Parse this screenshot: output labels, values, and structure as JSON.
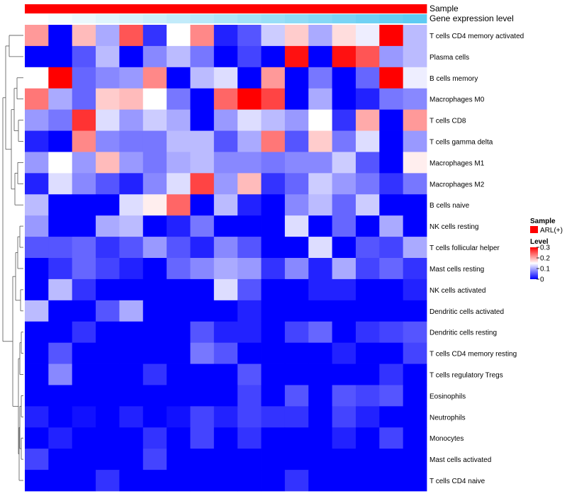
{
  "chart_data": {
    "type": "heatmap",
    "annotation_labels": {
      "sample": "Sample",
      "expression": "Gene expression level"
    },
    "rows": [
      "T cells CD4 memory activated",
      "Plasma cells",
      "B cells memory",
      "Macrophages M0",
      "T cells CD8",
      "T cells gamma delta",
      "Macrophages M1",
      "Macrophages M2",
      "B cells naive",
      "NK cells resting",
      "T cells follicular helper",
      "Mast cells resting",
      "NK cells activated",
      "Dendritic cells activated",
      "Dendritic cells resting",
      "T cells CD4 memory resting",
      "T cells regulatory  Tregs",
      "Eosinophils",
      "Neutrophils",
      "Monocytes",
      "Mast cells activated",
      "T cells CD4 naive"
    ],
    "n_columns": 17,
    "values": [
      [
        0.21,
        0.0,
        0.19,
        0.1,
        0.25,
        0.03,
        0.15,
        0.22,
        0.02,
        0.05,
        0.12,
        0.18,
        0.1,
        0.17,
        0.14,
        0.3,
        0.11
      ],
      [
        0.0,
        0.0,
        0.05,
        0.11,
        0.0,
        0.08,
        0.11,
        0.07,
        0.0,
        0.04,
        0.0,
        0.29,
        0.0,
        0.29,
        0.25,
        0.09,
        0.11
      ],
      [
        0.15,
        0.3,
        0.06,
        0.08,
        0.09,
        0.22,
        0.0,
        0.11,
        0.13,
        0.0,
        0.21,
        0.0,
        0.07,
        0.0,
        0.06,
        0.3,
        0.14
      ],
      [
        0.23,
        0.1,
        0.06,
        0.18,
        0.19,
        0.15,
        0.07,
        0.0,
        0.24,
        0.3,
        0.26,
        0.0,
        0.1,
        0.0,
        0.02,
        0.07,
        0.08
      ],
      [
        0.09,
        0.07,
        0.27,
        0.13,
        0.09,
        0.12,
        0.1,
        0.0,
        0.09,
        0.13,
        0.11,
        0.09,
        0.15,
        0.03,
        0.2,
        0.0,
        0.21
      ],
      [
        0.02,
        0.0,
        0.22,
        0.08,
        0.07,
        0.07,
        0.11,
        0.11,
        0.05,
        0.1,
        0.23,
        0.05,
        0.18,
        0.07,
        0.13,
        0.0,
        0.09
      ],
      [
        0.09,
        0.15,
        0.09,
        0.19,
        0.09,
        0.07,
        0.1,
        0.11,
        0.08,
        0.08,
        0.07,
        0.08,
        0.08,
        0.12,
        0.05,
        0.0,
        0.16
      ],
      [
        0.02,
        0.13,
        0.08,
        0.05,
        0.02,
        0.08,
        0.13,
        0.26,
        0.09,
        0.19,
        0.03,
        0.06,
        0.12,
        0.09,
        0.07,
        0.03,
        0.07
      ],
      [
        0.11,
        0.0,
        0.0,
        0.0,
        0.13,
        0.16,
        0.24,
        0.0,
        0.11,
        0.02,
        0.0,
        0.08,
        0.11,
        0.06,
        0.12,
        0.0,
        0.0
      ],
      [
        0.09,
        0.0,
        0.0,
        0.1,
        0.11,
        0.0,
        0.02,
        0.07,
        0.0,
        0.0,
        0.0,
        0.13,
        0.0,
        0.06,
        0.0,
        0.1,
        0.0
      ],
      [
        0.05,
        0.05,
        0.06,
        0.03,
        0.05,
        0.09,
        0.05,
        0.02,
        0.08,
        0.05,
        0.0,
        0.0,
        0.13,
        0.0,
        0.05,
        0.04,
        0.1
      ],
      [
        0.0,
        0.03,
        0.06,
        0.04,
        0.02,
        0.0,
        0.06,
        0.08,
        0.1,
        0.09,
        0.03,
        0.08,
        0.02,
        0.1,
        0.04,
        0.06,
        0.03
      ],
      [
        0.0,
        0.11,
        0.03,
        0.0,
        0.0,
        0.0,
        0.0,
        0.0,
        0.13,
        0.05,
        0.0,
        0.0,
        0.02,
        0.02,
        0.0,
        0.0,
        0.02
      ],
      [
        0.11,
        0.0,
        0.0,
        0.05,
        0.1,
        0.0,
        0.0,
        0.0,
        0.0,
        0.02,
        0.0,
        0.0,
        0.0,
        0.0,
        0.0,
        0.0,
        0.0
      ],
      [
        0.0,
        0.0,
        0.03,
        0.0,
        0.0,
        0.0,
        0.0,
        0.05,
        0.02,
        0.02,
        0.0,
        0.04,
        0.06,
        0.0,
        0.03,
        0.04,
        0.05
      ],
      [
        0.0,
        0.05,
        0.0,
        0.0,
        0.0,
        0.0,
        0.0,
        0.07,
        0.05,
        0.0,
        0.0,
        0.0,
        0.0,
        0.02,
        0.0,
        0.0,
        0.04
      ],
      [
        0.0,
        0.08,
        0.0,
        0.0,
        0.0,
        0.03,
        0.0,
        0.0,
        0.0,
        0.05,
        0.0,
        0.0,
        0.0,
        0.0,
        0.0,
        0.03,
        0.0
      ],
      [
        0.0,
        0.0,
        0.0,
        0.0,
        0.0,
        0.0,
        0.0,
        0.0,
        0.0,
        0.04,
        0.0,
        0.05,
        0.0,
        0.05,
        0.04,
        0.05,
        0.0
      ],
      [
        0.02,
        0.0,
        0.01,
        0.0,
        0.02,
        0.0,
        0.01,
        0.04,
        0.02,
        0.04,
        0.03,
        0.03,
        0.0,
        0.04,
        0.02,
        0.0,
        0.0
      ],
      [
        0.0,
        0.02,
        0.0,
        0.0,
        0.0,
        0.03,
        0.0,
        0.04,
        0.0,
        0.03,
        0.0,
        0.0,
        0.0,
        0.02,
        0.0,
        0.04,
        0.0
      ],
      [
        0.04,
        0.0,
        0.0,
        0.0,
        0.0,
        0.04,
        0.0,
        0.0,
        0.0,
        0.0,
        0.0,
        0.0,
        0.0,
        0.0,
        0.0,
        0.0,
        0.0
      ],
      [
        0.0,
        0.0,
        0.0,
        0.03,
        0.0,
        0.0,
        0.0,
        0.0,
        0.0,
        0.0,
        0.0,
        0.03,
        0.0,
        0.0,
        0.0,
        0.0,
        0.0
      ]
    ],
    "expression_levels": [
      0.0,
      0.06,
      0.12,
      0.18,
      0.24,
      0.3,
      0.36,
      0.42,
      0.48,
      0.54,
      0.6,
      0.66,
      0.72,
      0.78,
      0.84,
      0.9,
      0.95
    ],
    "sample_groups": [
      "ARL(+)",
      "ARL(+)",
      "ARL(+)",
      "ARL(+)",
      "ARL(+)",
      "ARL(+)",
      "ARL(+)",
      "ARL(+)",
      "ARL(+)",
      "ARL(+)",
      "ARL(+)",
      "ARL(+)",
      "ARL(+)",
      "ARL(+)",
      "ARL(+)",
      "ARL(+)",
      "ARL(+)"
    ],
    "legend": {
      "sample_title": "Sample",
      "sample_entries": [
        {
          "label": "ARL(+)",
          "color": "#ff0000"
        }
      ],
      "level_title": "Level",
      "level_ticks": [
        0.3,
        0.2,
        0.1,
        0
      ],
      "range": [
        0,
        0.3
      ]
    },
    "colors": {
      "low": "#0000ff",
      "mid": "#ffffff",
      "high": "#ff0000",
      "annotation_low": "#ffffff",
      "annotation_high": "#55c8f2",
      "dendrogram": "#555555"
    }
  }
}
